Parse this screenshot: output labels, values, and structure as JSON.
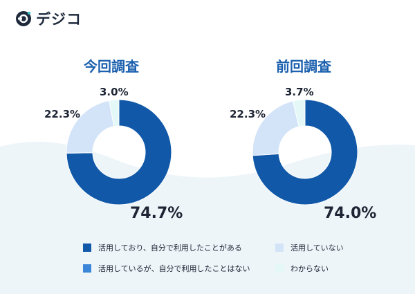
{
  "brand": {
    "name": "デジコ",
    "logo_letter": "D"
  },
  "colors": {
    "active_self_used": "#1159a8",
    "active_not_self_used": "#3b86d8",
    "not_active": "#d3e4f8",
    "unknown": "#e4f8f8",
    "title": "#1a5fae",
    "background_wave": "#eef5f9"
  },
  "legend": [
    {
      "label": "活用しており、自分で利用したことがある",
      "color_key": "active_self_used"
    },
    {
      "label": "活用しているが、自分で利用したことはない",
      "color_key": "active_not_self_used"
    },
    {
      "label": "活用していない",
      "color_key": "not_active"
    },
    {
      "label": "わからない",
      "color_key": "unknown"
    }
  ],
  "chart_data": [
    {
      "type": "pie",
      "title": "今回調査",
      "series": [
        {
          "name": "活用しており、自分で利用したことがある",
          "value": 74.7,
          "label": "74.7%"
        },
        {
          "name": "活用しているが、自分で利用したことはない",
          "value": 0,
          "label": ""
        },
        {
          "name": "活用していない",
          "value": 22.3,
          "label": "22.3%"
        },
        {
          "name": "わからない",
          "value": 3.0,
          "label": "3.0%"
        }
      ]
    },
    {
      "type": "pie",
      "title": "前回調査",
      "series": [
        {
          "name": "活用しており、自分で利用したことがある",
          "value": 74.0,
          "label": "74.0%"
        },
        {
          "name": "活用しているが、自分で利用したことはない",
          "value": 0,
          "label": ""
        },
        {
          "name": "活用していない",
          "value": 22.3,
          "label": "22.3%"
        },
        {
          "name": "わからない",
          "value": 3.7,
          "label": "3.7%"
        }
      ]
    }
  ]
}
